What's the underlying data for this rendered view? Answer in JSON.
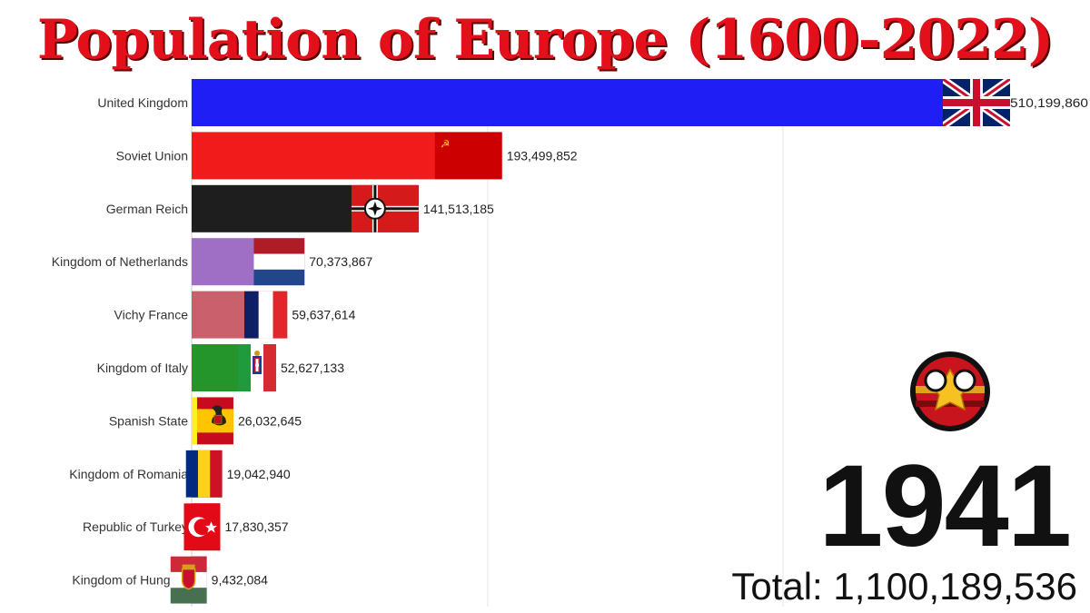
{
  "title": "Population of Europe (1600-2022)",
  "year": "1941",
  "total": "Total: 1,100,189,536",
  "chart_data": {
    "type": "bar",
    "orientation": "horizontal",
    "title": "Population of Europe (1600-2022)",
    "grid": true,
    "categories": [
      "United Kingdom",
      "Soviet Union",
      "German Reich",
      "Kingdom of Netherlands",
      "Vichy France",
      "Kingdom of Italy",
      "Spanish State",
      "Kingdom of Romania",
      "Republic of Turkey",
      "Kingdom of Hungary"
    ],
    "values": [
      510199860,
      193499852,
      141513185,
      70373867,
      59637614,
      52627133,
      26032645,
      19042940,
      17830357,
      9432084
    ],
    "value_labels": [
      "510,199,860",
      "193,499,852",
      "141,513,185",
      "70,373,867",
      "59,637,614",
      "52,627,133",
      "26,032,645",
      "19,042,940",
      "17,830,357",
      "9,432,084"
    ],
    "bar_colors": [
      "#1f1ff5",
      "#f21b1b",
      "#1e1e1e",
      "#9e6fc4",
      "#c9606b",
      "#23952a",
      "#fff21a",
      "#5f8a3a",
      "#f01e1e",
      "#9a5fb8"
    ],
    "flags": [
      "union-jack-flag",
      "soviet-flag",
      "reich-war-flag",
      "netherlands-flag",
      "france-flag",
      "italy-flag",
      "spain-flag",
      "romania-flag",
      "turkey-flag",
      "hungary-flag"
    ],
    "xlim": [
      0,
      510199860
    ]
  }
}
